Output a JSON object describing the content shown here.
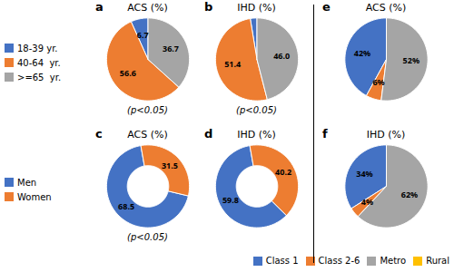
{
  "chart_data": [
    {
      "type": "pie",
      "panel_label": "a",
      "title": "ACS (%)",
      "categories": [
        "18-39 yr.",
        "40-64  yr.",
        ">=65  yr."
      ],
      "values": [
        6.7,
        56.6,
        36.7
      ],
      "colors": [
        "#4472C4",
        "#ED7D31",
        "#A5A5A5"
      ],
      "value_labels": [
        "6.7",
        "56.6",
        "36.7"
      ],
      "data_labels": true,
      "annotations": [
        "(p<0.05)"
      ],
      "legend": "left"
    },
    {
      "type": "pie",
      "panel_label": "b",
      "title": "IHD (%)",
      "categories": [
        "18-39 yr.",
        "40-64  yr.",
        ">=65  yr."
      ],
      "values": [
        2.6,
        51.4,
        46.0
      ],
      "colors": [
        "#4472C4",
        "#ED7D31",
        "#A5A5A5"
      ],
      "value_labels": [
        null,
        "51.4",
        "46.0"
      ],
      "data_labels": true,
      "annotations": [
        "(p<0.05)"
      ]
    },
    {
      "type": "donut",
      "panel_label": "c",
      "title": "ACS (%)",
      "categories": [
        "Men",
        "Women"
      ],
      "values": [
        68.5,
        31.5
      ],
      "colors": [
        "#4472C4",
        "#ED7D31"
      ],
      "value_labels": [
        "68.5",
        "31.5"
      ],
      "data_labels": true,
      "annotations": [
        "(p<0.05)"
      ],
      "legend": "left"
    },
    {
      "type": "donut",
      "panel_label": "d",
      "title": "IHD (%)",
      "categories": [
        "Men",
        "Women"
      ],
      "values": [
        59.8,
        40.2
      ],
      "colors": [
        "#4472C4",
        "#ED7D31"
      ],
      "value_labels": [
        "59.8",
        "40.2"
      ],
      "data_labels": true
    },
    {
      "type": "pie",
      "panel_label": "e",
      "title": "ACS (%)",
      "categories": [
        "Class 1",
        "Class 2-6",
        "Metro",
        "Rural"
      ],
      "values": [
        42,
        6,
        52,
        0.01
      ],
      "colors": [
        "#4472C4",
        "#ED7D31",
        "#A5A5A5",
        "#FFC000"
      ],
      "value_labels": [
        "42%",
        "6%",
        "52%",
        null
      ],
      "data_labels": true
    },
    {
      "type": "pie",
      "panel_label": "f",
      "title": "IHD (%)",
      "categories": [
        "Class 1",
        "Class 2-6",
        "Metro",
        "Rural"
      ],
      "values": [
        34,
        4,
        62,
        0.01
      ],
      "colors": [
        "#4472C4",
        "#ED7D31",
        "#A5A5A5",
        "#FFC000"
      ],
      "value_labels": [
        "34%",
        "4%",
        "62%",
        null
      ],
      "data_labels": true,
      "legend": "bottom"
    }
  ]
}
